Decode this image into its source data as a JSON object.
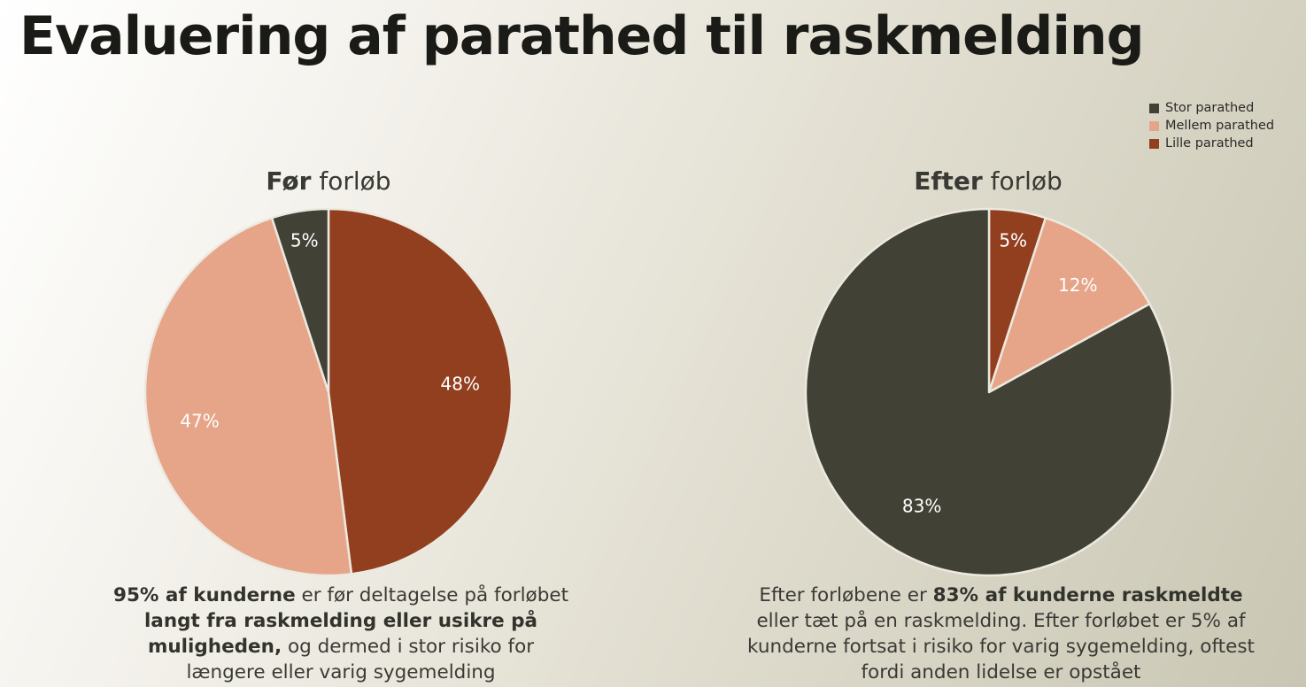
{
  "title": "Evaluering af parathed til raskmelding",
  "legend": [
    {
      "label": "Stor parathed",
      "color": "#424136"
    },
    {
      "label": "Mellem parathed",
      "color": "#e6a588"
    },
    {
      "label": "Lille parathed",
      "color": "#923f20"
    }
  ],
  "chart_data": [
    {
      "type": "pie",
      "title_bold": "Før",
      "title_rest": " forløb",
      "slices": [
        {
          "name": "Lille parathed",
          "value": 48,
          "label": "48%",
          "color": "#923f20"
        },
        {
          "name": "Mellem parathed",
          "value": 47,
          "label": "47%",
          "color": "#e6a588"
        },
        {
          "name": "Stor parathed",
          "value": 5,
          "label": "5%",
          "color": "#424136"
        }
      ]
    },
    {
      "type": "pie",
      "title_bold": "Efter",
      "title_rest": " forløb",
      "slices": [
        {
          "name": "Lille parathed",
          "value": 5,
          "label": "5%",
          "color": "#923f20"
        },
        {
          "name": "Mellem parathed",
          "value": 12,
          "label": "12%",
          "color": "#e6a588"
        },
        {
          "name": "Stor parathed",
          "value": 83,
          "label": "83%",
          "color": "#424136"
        }
      ]
    }
  ],
  "captions": {
    "left": {
      "b1": "95% af kunderne",
      "t1": " er før deltagelse på forløbet ",
      "b2": "langt fra raskmelding eller usikre på muligheden,",
      "t2": " og dermed i stor risiko for længere eller varig sygemelding"
    },
    "right": {
      "t1": "Efter forløbene er ",
      "b1": "83% af kunderne raskmeldte",
      "t2": " eller tæt på en raskmelding. Efter forløbet er 5% af kunderne fortsat i risiko for varig sygemelding, oftest fordi anden lidelse er opstået"
    }
  }
}
